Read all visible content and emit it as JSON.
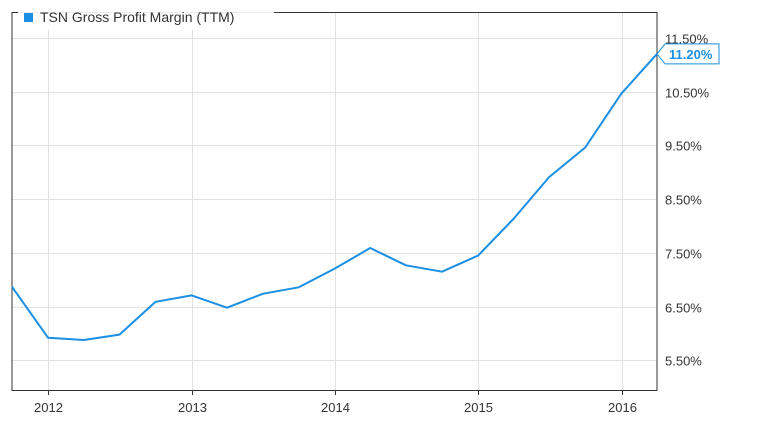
{
  "chart_data": {
    "type": "line",
    "title": "",
    "xlabel": "",
    "ylabel": "",
    "legend_position": "top-left",
    "grid": true,
    "accent_color": "#1a8fe3",
    "series": [
      {
        "name": "TSN Gross Profit Margin (TTM)",
        "color": "#1a8fe3",
        "x": [
          "2011-09-30",
          "2011-12-31",
          "2012-03-31",
          "2012-06-30",
          "2012-09-30",
          "2012-12-31",
          "2013-03-31",
          "2013-06-30",
          "2013-09-30",
          "2013-12-31",
          "2014-03-31",
          "2014-06-30",
          "2014-09-30",
          "2014-12-31",
          "2015-03-31",
          "2015-06-30",
          "2015-09-30",
          "2015-12-31",
          "2016-03-31"
        ],
        "values": [
          6.87,
          5.92,
          5.88,
          5.98,
          6.59,
          6.71,
          6.48,
          6.74,
          6.86,
          7.21,
          7.59,
          7.27,
          7.15,
          7.45,
          8.13,
          8.91,
          9.46,
          10.46,
          11.2
        ]
      }
    ],
    "last_value_label": "11.20%",
    "x_ticks": [
      "2012",
      "2013",
      "2014",
      "2015",
      "2016"
    ],
    "x_tick_dates": [
      "2012-01-01",
      "2013-01-01",
      "2014-01-01",
      "2015-01-01",
      "2016-01-01"
    ],
    "x_range": [
      "2011-09-30",
      "2016-03-31"
    ],
    "y_ticks": [
      5.5,
      6.5,
      7.5,
      8.5,
      9.5,
      10.5,
      11.5
    ],
    "y_tick_labels": [
      "5.50%",
      "6.50%",
      "7.50%",
      "8.50%",
      "9.50%",
      "10.50%",
      "11.50%"
    ],
    "ylim": [
      4.95,
      11.98
    ]
  }
}
